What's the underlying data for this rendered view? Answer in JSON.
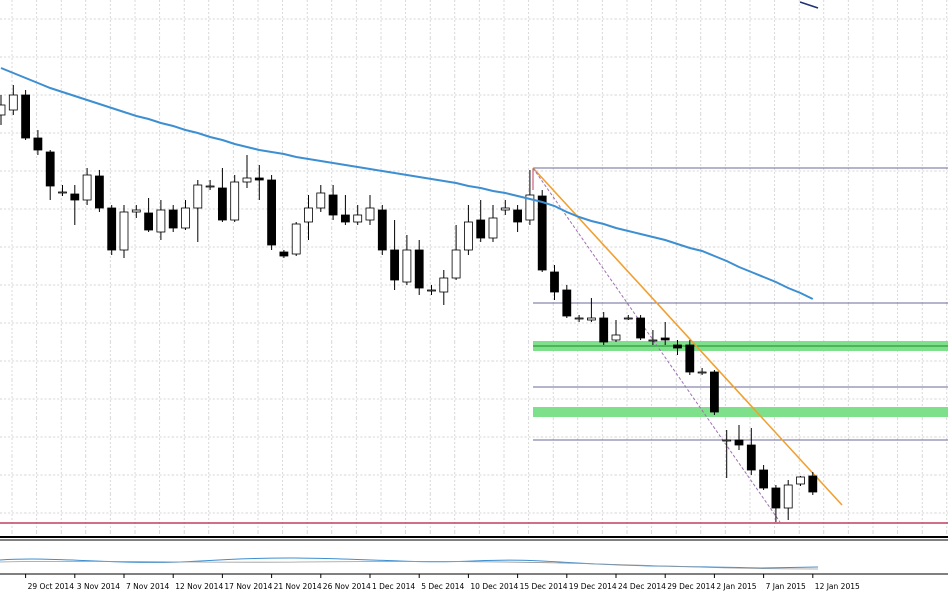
{
  "chart_data": {
    "type": "candlestick",
    "categories": [
      null,
      null,
      "29 Oct 2014",
      null,
      null,
      null,
      "3 Nov 2014",
      null,
      null,
      null,
      "7 Nov 2014",
      null,
      null,
      null,
      "12 Nov 2014",
      null,
      null,
      null,
      "17 Nov 2014",
      null,
      null,
      null,
      "21 Nov 2014",
      null,
      null,
      null,
      "26 Nov 2014",
      null,
      null,
      null,
      "1 Dec 2014",
      null,
      null,
      null,
      "5 Dec 2014",
      null,
      null,
      null,
      "10 Dec 2014",
      null,
      null,
      null,
      "15 Dec 2014",
      null,
      null,
      null,
      "19 Dec 2014",
      null,
      null,
      null,
      "24 Dec 2014",
      null,
      null,
      null,
      "29 Dec 2014",
      null,
      null,
      null,
      "2 Jan 2015",
      null,
      null,
      null,
      "7 Jan 2015",
      null,
      null,
      null,
      "12 Jan 2015"
    ],
    "open": [
      425,
      430,
      445,
      402,
      388,
      348,
      346,
      340,
      364,
      332,
      290,
      328,
      327,
      308,
      330,
      312,
      332,
      354,
      352,
      320,
      358,
      362,
      360,
      288,
      286,
      318,
      332,
      345,
      325,
      318,
      320,
      330,
      290,
      258,
      290,
      250,
      248,
      262,
      290,
      320,
      302,
      330,
      330,
      320,
      344,
      268,
      250,
      222,
      220,
      222,
      200,
      222,
      222,
      200,
      202,
      195,
      195,
      168,
      168,
      100,
      100,
      95,
      70,
      52,
      32,
      56,
      64
    ],
    "high": [
      445,
      455,
      450,
      410,
      390,
      355,
      355,
      372,
      370,
      335,
      335,
      335,
      342,
      340,
      335,
      340,
      360,
      360,
      372,
      365,
      385,
      375,
      365,
      290,
      318,
      345,
      355,
      355,
      345,
      335,
      345,
      335,
      320,
      305,
      300,
      255,
      270,
      315,
      335,
      340,
      335,
      340,
      335,
      370,
      350,
      275,
      255,
      225,
      242,
      228,
      220,
      225,
      225,
      210,
      218,
      200,
      200,
      172,
      170,
      110,
      115,
      112,
      75,
      55,
      60,
      64,
      68
    ],
    "low": [
      415,
      425,
      400,
      385,
      340,
      344,
      315,
      335,
      328,
      285,
      282,
      322,
      308,
      300,
      308,
      310,
      298,
      350,
      318,
      318,
      352,
      340,
      290,
      282,
      284,
      300,
      328,
      320,
      315,
      315,
      315,
      285,
      250,
      255,
      245,
      245,
      235,
      260,
      285,
      298,
      298,
      325,
      308,
      315,
      268,
      240,
      222,
      218,
      218,
      195,
      198,
      220,
      200,
      195,
      195,
      185,
      165,
      165,
      125,
      62,
      90,
      65,
      50,
      18,
      20,
      54,
      45
    ],
    "close": [
      435,
      445,
      402,
      390,
      354,
      348,
      340,
      365,
      332,
      290,
      328,
      330,
      310,
      330,
      312,
      332,
      355,
      354,
      320,
      358,
      362,
      360,
      295,
      284,
      316,
      332,
      347,
      325,
      318,
      325,
      332,
      290,
      260,
      290,
      252,
      250,
      262,
      290,
      318,
      302,
      322,
      332,
      318,
      345,
      270,
      248,
      224,
      222,
      222,
      198,
      205,
      222,
      202,
      200,
      200,
      192,
      168,
      168,
      128,
      100,
      95,
      70,
      52,
      32,
      55,
      63,
      48
    ],
    "up_color": "#ffffff",
    "down_color": "#000000",
    "moving_average": {
      "color": "#3d8fd1",
      "values": [
        472,
        467,
        462,
        457,
        452,
        448,
        444,
        440,
        436,
        432,
        428,
        424,
        421,
        417,
        414,
        410,
        407,
        403,
        400,
        396,
        393,
        390,
        388,
        386,
        383,
        381,
        379,
        377,
        375,
        373,
        371,
        369,
        367,
        365,
        363,
        361,
        359,
        357,
        354,
        352,
        349,
        347,
        344,
        341,
        338,
        334,
        328,
        323,
        319,
        316,
        312,
        309,
        306,
        303,
        300,
        296,
        292,
        289,
        284,
        279,
        273,
        268,
        263,
        258,
        252,
        247,
        241
      ]
    },
    "ylim": [
      3,
      540
    ],
    "grid": true
  }
}
